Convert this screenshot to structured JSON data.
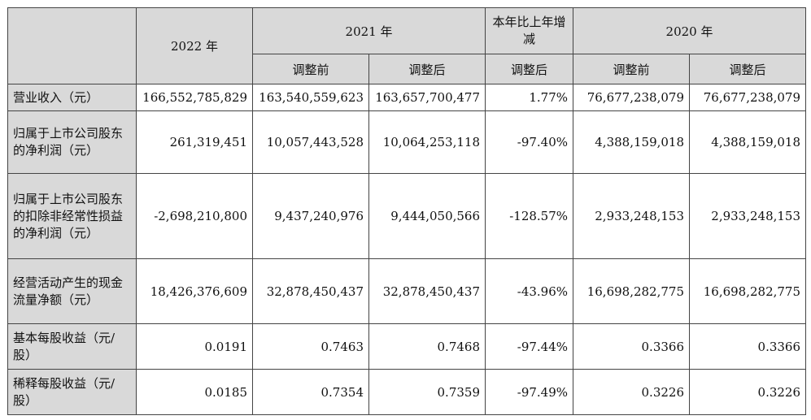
{
  "header": {
    "y2022": "2022 年",
    "y2021": "2021 年",
    "yoy": "本年比上年增减",
    "y2020": "2020 年",
    "sub": {
      "before": "调整前",
      "after": "调整后"
    }
  },
  "rows": [
    {
      "label": "营业收入（元）",
      "values": [
        "166,552,785,829",
        "163,540,559,623",
        "163,657,700,477",
        "1.77%",
        "76,677,238,079",
        "76,677,238,079"
      ]
    },
    {
      "label": "归属于上市公司股东的净利润（元）",
      "values": [
        "261,319,451",
        "10,057,443,528",
        "10,064,253,118",
        "-97.40%",
        "4,388,159,018",
        "4,388,159,018"
      ]
    },
    {
      "label": "归属于上市公司股东的扣除非经常性损益的净利润（元）",
      "values": [
        "-2,698,210,800",
        "9,437,240,976",
        "9,444,050,566",
        "-128.57%",
        "2,933,248,153",
        "2,933,248,153"
      ]
    },
    {
      "label": "经营活动产生的现金流量净额（元）",
      "values": [
        "18,426,376,609",
        "32,878,450,437",
        "32,878,450,437",
        "-43.96%",
        "16,698,282,775",
        "16,698,282,775"
      ]
    },
    {
      "label": "基本每股收益（元/股）",
      "values": [
        "0.0191",
        "0.7463",
        "0.7468",
        "-97.44%",
        "0.3366",
        "0.3366"
      ]
    },
    {
      "label": "稀释每股收益（元/股）",
      "values": [
        "0.0185",
        "0.7354",
        "0.7359",
        "-97.49%",
        "0.3226",
        "0.3226"
      ]
    }
  ]
}
